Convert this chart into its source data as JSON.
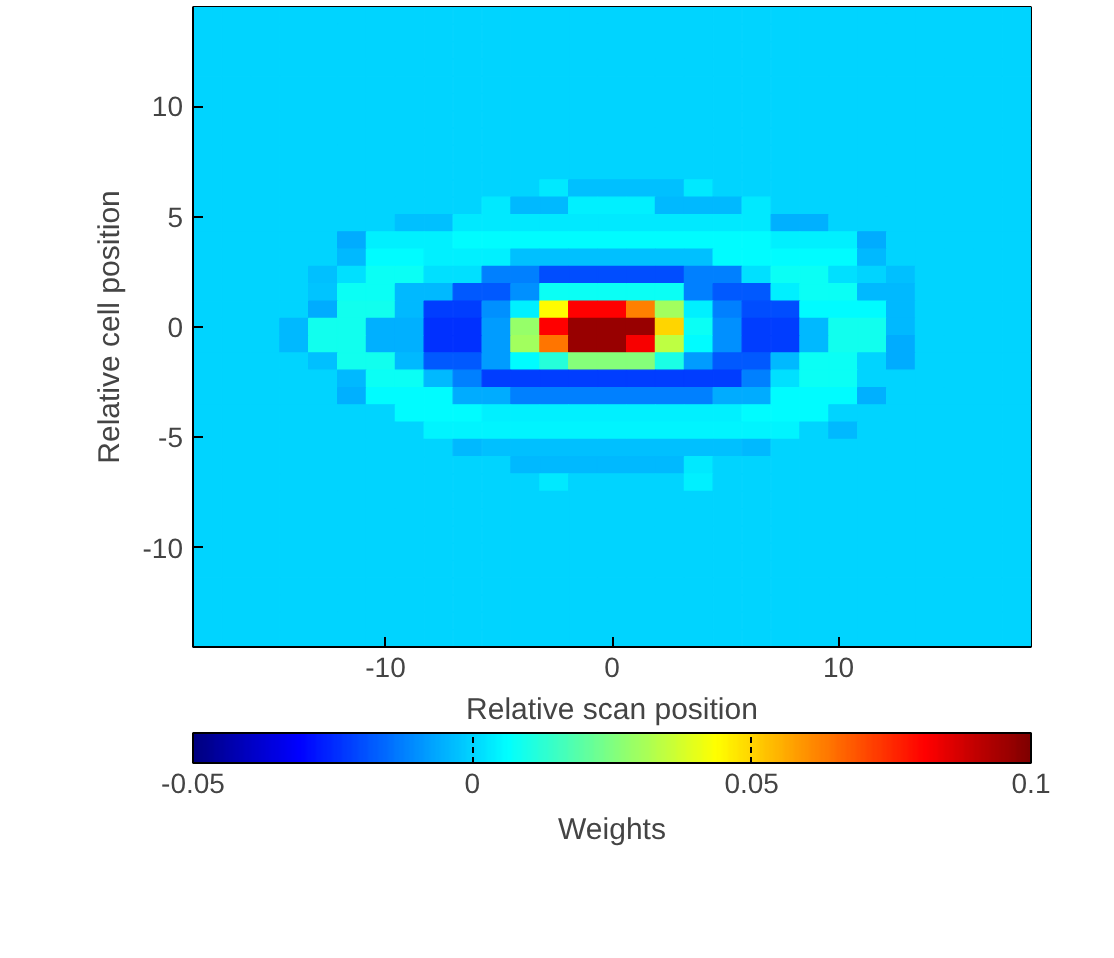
{
  "chart_data": {
    "type": "heatmap",
    "xlabel": "Relative scan position",
    "ylabel": "Relative cell position",
    "clabel": "Weights",
    "xlim": [
      -18.5,
      18.5
    ],
    "ylim": [
      -14.5,
      14.5
    ],
    "xticks": [
      -10,
      0,
      10
    ],
    "yticks": [
      -10,
      -5,
      0,
      5,
      10
    ],
    "clim": [
      -0.05,
      0.1
    ],
    "cticks": [
      -0.05,
      0,
      0.05,
      0.1
    ],
    "grid": false,
    "x": [
      -17.86,
      -16.59,
      -15.31,
      -14.03,
      -12.76,
      -11.48,
      -10.21,
      -8.93,
      -7.66,
      -6.38,
      -5.1,
      -3.83,
      -2.55,
      -1.28,
      0,
      1.28,
      2.55,
      3.83,
      5.1,
      6.38,
      7.66,
      8.93,
      10.21,
      11.48,
      12.76,
      14.03,
      15.31,
      16.59,
      17.86
    ],
    "y": [
      14.11,
      13.32,
      12.54,
      11.76,
      10.97,
      10.19,
      9.41,
      8.62,
      7.84,
      7.05,
      6.27,
      5.49,
      4.7,
      3.92,
      3.14,
      2.35,
      1.57,
      0.78,
      0,
      -0.78,
      -1.57,
      -2.35,
      -3.14,
      -3.92,
      -4.7,
      -5.49,
      -6.27,
      -7.05,
      -7.84,
      -8.62,
      -9.41,
      -10.19,
      -10.97,
      -11.76,
      -12.54,
      -13.32,
      -14.11
    ],
    "cells": [
      [
        0,
        0,
        0,
        0,
        0,
        0,
        0,
        0,
        0,
        0,
        0,
        0,
        0,
        0,
        0,
        0,
        0,
        0,
        0,
        0,
        0,
        0,
        0,
        0,
        0,
        0,
        0,
        0,
        0
      ],
      [
        0,
        0,
        0,
        0,
        0,
        0,
        0,
        0,
        0,
        0,
        0,
        0,
        0,
        0,
        0,
        0,
        0,
        0,
        0,
        0,
        0,
        0,
        0,
        0,
        0,
        0,
        0,
        0,
        0
      ],
      [
        0,
        0,
        0,
        0,
        0,
        0,
        0,
        0,
        0,
        0,
        0,
        0,
        0,
        0,
        0,
        0,
        0,
        0,
        0,
        0,
        0,
        0,
        0,
        0,
        0,
        0,
        0,
        0,
        0
      ],
      [
        0,
        0,
        0,
        0,
        0,
        0,
        0,
        0,
        0,
        0,
        0,
        0,
        0,
        0,
        0,
        0,
        0,
        0,
        0,
        0,
        0,
        0,
        0,
        0,
        0,
        0,
        0,
        0,
        0
      ],
      [
        0,
        0,
        0,
        0,
        0,
        0,
        0,
        0,
        0,
        0,
        0,
        0,
        0,
        0,
        0,
        0,
        0,
        0,
        0,
        0,
        0,
        0,
        0,
        0,
        0,
        0,
        0,
        0,
        0
      ],
      [
        0,
        0,
        0,
        0,
        0,
        0,
        0,
        0,
        0,
        0,
        0,
        0,
        0,
        0,
        0,
        0,
        0,
        0,
        0,
        0,
        0,
        0,
        0,
        0,
        0,
        0,
        0,
        0,
        0
      ],
      [
        0,
        0,
        0,
        0,
        0,
        0,
        0,
        0,
        0,
        0,
        0,
        0,
        0,
        0,
        0,
        0,
        0,
        0,
        0,
        0,
        0,
        0,
        0,
        0,
        0,
        0,
        0,
        0,
        0
      ],
      [
        0,
        0,
        0,
        0,
        0,
        0,
        0,
        0,
        0,
        0,
        0,
        0,
        0,
        0,
        0,
        0,
        0,
        0,
        0,
        0,
        0,
        0,
        0,
        0,
        0,
        0,
        0,
        0,
        0
      ],
      [
        0,
        0,
        0,
        0,
        0,
        0,
        0,
        0,
        0,
        0,
        0,
        0,
        0,
        0,
        0,
        0,
        0,
        0,
        0,
        0,
        0,
        0,
        0,
        0,
        0,
        0,
        0,
        0,
        0
      ],
      [
        0,
        0,
        0,
        0,
        0,
        0,
        0,
        0,
        0,
        0,
        0,
        0,
        0,
        0,
        0,
        0,
        0,
        0,
        0,
        0,
        0,
        0,
        0,
        0,
        0,
        0,
        0,
        0,
        0
      ],
      [
        0,
        0,
        0,
        0,
        0,
        0,
        0,
        0,
        0,
        0,
        0,
        0,
        0.003,
        -0.003,
        -0.003,
        -0.003,
        -0.003,
        0.003,
        0,
        0,
        0,
        0,
        0,
        0,
        0,
        0,
        0,
        0,
        0
      ],
      [
        0,
        0,
        0,
        0,
        0,
        0,
        0,
        0,
        0,
        0,
        0.003,
        -0.004,
        -0.004,
        0.004,
        0.004,
        0.004,
        -0.004,
        -0.004,
        -0.004,
        0.003,
        0,
        0,
        0,
        0,
        0,
        0,
        0,
        0,
        0
      ],
      [
        0,
        0,
        0,
        0,
        0,
        0,
        0,
        -0.003,
        -0.003,
        0.003,
        0.003,
        0.003,
        0.003,
        0.003,
        0.003,
        0.003,
        0.003,
        0.003,
        0.003,
        0.003,
        -0.005,
        -0.005,
        0,
        0,
        0,
        0,
        0,
        0,
        0
      ],
      [
        0,
        0,
        0,
        0,
        0,
        -0.006,
        0.004,
        0.004,
        0.004,
        0.006,
        0.006,
        0.006,
        0.006,
        0.006,
        0.006,
        0.006,
        0.006,
        0.006,
        0.006,
        0.006,
        0.004,
        0.004,
        0.004,
        -0.006,
        0,
        0,
        0,
        0,
        0
      ],
      [
        0,
        0,
        0,
        0,
        0,
        -0.004,
        0.006,
        0.006,
        0.004,
        0.004,
        0.004,
        -0.003,
        -0.003,
        -0.003,
        -0.003,
        -0.003,
        -0.003,
        -0.003,
        0.006,
        0.006,
        0.006,
        0.006,
        0.006,
        -0.004,
        0,
        0,
        0,
        0,
        0
      ],
      [
        0,
        0,
        0,
        0,
        -0.003,
        0.002,
        0.008,
        0.008,
        0.002,
        0.002,
        -0.012,
        -0.012,
        -0.02,
        -0.02,
        -0.02,
        -0.02,
        -0.02,
        -0.012,
        -0.012,
        0.002,
        0.008,
        0.008,
        0.002,
        0,
        -0.003,
        0,
        0,
        0,
        0
      ],
      [
        0,
        0,
        0,
        0,
        -0.002,
        0.008,
        0.008,
        -0.004,
        -0.004,
        -0.018,
        -0.018,
        -0.01,
        0.008,
        0.008,
        0.008,
        0.008,
        0.008,
        -0.012,
        -0.018,
        -0.018,
        0.004,
        0.008,
        0.008,
        -0.004,
        -0.004,
        0,
        0,
        0,
        0
      ],
      [
        0,
        0,
        0,
        0,
        -0.006,
        0.009,
        0.009,
        -0.004,
        -0.022,
        -0.022,
        -0.01,
        0.004,
        0.044,
        0.081,
        0.081,
        0.062,
        0.03,
        0.004,
        -0.012,
        -0.02,
        -0.02,
        0.006,
        0.006,
        0.006,
        -0.004,
        0,
        0,
        0,
        0
      ],
      [
        0,
        0,
        0,
        -0.004,
        0.009,
        0.009,
        -0.005,
        -0.005,
        -0.024,
        -0.024,
        -0.008,
        0.028,
        0.081,
        0.096,
        0.096,
        0.096,
        0.05,
        0.008,
        -0.01,
        -0.022,
        -0.022,
        -0.004,
        0.009,
        0.009,
        -0.004,
        0,
        0,
        0,
        0
      ],
      [
        0,
        0,
        0,
        -0.004,
        0.009,
        0.009,
        -0.005,
        -0.005,
        -0.024,
        -0.024,
        -0.008,
        0.03,
        0.064,
        0.096,
        0.096,
        0.082,
        0.034,
        0.006,
        -0.01,
        -0.022,
        -0.022,
        -0.004,
        0.009,
        0.009,
        -0.006,
        0,
        0,
        0,
        0
      ],
      [
        0,
        0,
        0,
        0,
        -0.003,
        0.009,
        0.009,
        -0.004,
        -0.018,
        -0.018,
        -0.008,
        0.006,
        0.012,
        0.026,
        0.026,
        0.026,
        0.01,
        -0.008,
        -0.018,
        -0.018,
        -0.004,
        0.008,
        0.008,
        0,
        -0.006,
        0,
        0,
        0,
        0
      ],
      [
        0,
        0,
        0,
        0,
        0,
        -0.004,
        0.008,
        0.008,
        -0.004,
        -0.012,
        -0.022,
        -0.022,
        -0.022,
        -0.022,
        -0.022,
        -0.022,
        -0.022,
        -0.022,
        -0.022,
        -0.012,
        0.002,
        0.008,
        0.008,
        0,
        0,
        0,
        0,
        0,
        0
      ],
      [
        0,
        0,
        0,
        0,
        0,
        -0.005,
        0.006,
        0.006,
        0.006,
        -0.006,
        -0.006,
        -0.012,
        -0.012,
        -0.012,
        -0.012,
        -0.012,
        -0.012,
        -0.012,
        -0.006,
        -0.006,
        0.006,
        0.006,
        0.006,
        -0.005,
        0,
        0,
        0,
        0,
        0
      ],
      [
        0,
        0,
        0,
        0,
        0,
        0,
        0,
        0.006,
        0.006,
        0.006,
        0.004,
        0.004,
        0.004,
        0.004,
        0.004,
        0.004,
        0.004,
        0.004,
        0.004,
        0.006,
        0.006,
        0.006,
        0,
        0,
        0,
        0,
        0,
        0,
        0
      ],
      [
        0,
        0,
        0,
        0,
        0,
        0,
        0,
        0,
        0.005,
        0.005,
        0.005,
        0.005,
        0.005,
        0.005,
        0.005,
        0.005,
        0.005,
        0.005,
        0.005,
        0.005,
        0.005,
        0,
        -0.004,
        0,
        0,
        0,
        0,
        0,
        0
      ],
      [
        0,
        0,
        0,
        0,
        0,
        0,
        0,
        0,
        0,
        -0.004,
        -0.003,
        -0.003,
        -0.003,
        -0.003,
        -0.003,
        -0.003,
        -0.003,
        -0.003,
        -0.003,
        -0.004,
        0,
        0,
        0,
        0,
        0,
        0,
        0,
        0,
        0
      ],
      [
        0,
        0,
        0,
        0,
        0,
        0,
        0,
        0,
        0,
        0,
        0,
        -0.004,
        -0.004,
        -0.004,
        -0.004,
        -0.004,
        -0.004,
        0.003,
        0,
        0,
        0,
        0,
        0,
        0,
        0,
        0,
        0,
        0,
        0
      ],
      [
        0,
        0,
        0,
        0,
        0,
        0,
        0,
        0,
        0,
        0,
        0,
        0,
        0.003,
        0,
        0,
        0,
        0,
        0.004,
        0,
        0,
        0,
        0,
        0,
        0,
        0,
        0,
        0,
        0,
        0
      ],
      [
        0,
        0,
        0,
        0,
        0,
        0,
        0,
        0,
        0,
        0,
        0,
        0,
        0,
        0,
        0,
        0,
        0,
        0,
        0,
        0,
        0,
        0,
        0,
        0,
        0,
        0,
        0,
        0,
        0
      ],
      [
        0,
        0,
        0,
        0,
        0,
        0,
        0,
        0,
        0,
        0,
        0,
        0,
        0,
        0,
        0,
        0,
        0,
        0,
        0,
        0,
        0,
        0,
        0,
        0,
        0,
        0,
        0,
        0,
        0
      ],
      [
        0,
        0,
        0,
        0,
        0,
        0,
        0,
        0,
        0,
        0,
        0,
        0,
        0,
        0,
        0,
        0,
        0,
        0,
        0,
        0,
        0,
        0,
        0,
        0,
        0,
        0,
        0,
        0,
        0
      ],
      [
        0,
        0,
        0,
        0,
        0,
        0,
        0,
        0,
        0,
        0,
        0,
        0,
        0,
        0,
        0,
        0,
        0,
        0,
        0,
        0,
        0,
        0,
        0,
        0,
        0,
        0,
        0,
        0,
        0
      ],
      [
        0,
        0,
        0,
        0,
        0,
        0,
        0,
        0,
        0,
        0,
        0,
        0,
        0,
        0,
        0,
        0,
        0,
        0,
        0,
        0,
        0,
        0,
        0,
        0,
        0,
        0,
        0,
        0,
        0
      ],
      [
        0,
        0,
        0,
        0,
        0,
        0,
        0,
        0,
        0,
        0,
        0,
        0,
        0,
        0,
        0,
        0,
        0,
        0,
        0,
        0,
        0,
        0,
        0,
        0,
        0,
        0,
        0,
        0,
        0
      ],
      [
        0,
        0,
        0,
        0,
        0,
        0,
        0,
        0,
        0,
        0,
        0,
        0,
        0,
        0,
        0,
        0,
        0,
        0,
        0,
        0,
        0,
        0,
        0,
        0,
        0,
        0,
        0,
        0,
        0
      ],
      [
        0,
        0,
        0,
        0,
        0,
        0,
        0,
        0,
        0,
        0,
        0,
        0,
        0,
        0,
        0,
        0,
        0,
        0,
        0,
        0,
        0,
        0,
        0,
        0,
        0,
        0,
        0,
        0,
        0
      ],
      [
        0,
        0,
        0,
        0,
        0,
        0,
        0,
        0,
        0,
        0,
        0,
        0,
        0,
        0,
        0,
        0,
        0,
        0,
        0,
        0,
        0,
        0,
        0,
        0,
        0,
        0,
        0,
        0,
        0
      ]
    ]
  }
}
